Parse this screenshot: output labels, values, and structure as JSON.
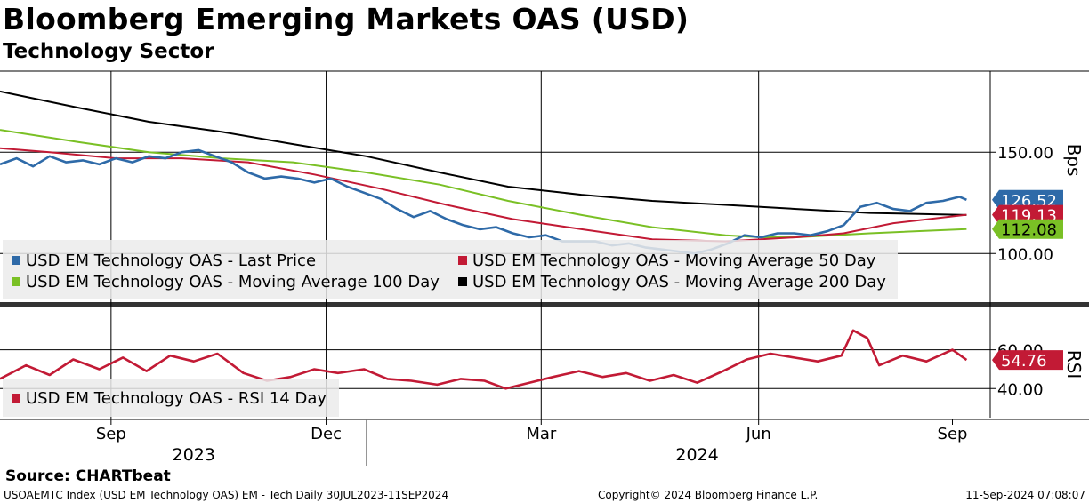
{
  "header": {
    "title": "Bloomberg Emerging Markets OAS (USD)",
    "subtitle": "Technology Sector"
  },
  "chart_data": [
    {
      "type": "line",
      "x_range": [
        "2023-07-30",
        "2024-09-11"
      ],
      "ylabel": "Bps",
      "ylim": [
        76,
        190
      ],
      "yticks": [
        100,
        150
      ],
      "ytick_labels": [
        "100.00",
        "150.00"
      ],
      "grid": true,
      "legend_placement": "bottom-left",
      "series": [
        {
          "name": "USD EM Technology OAS - Last Price",
          "color": "#2e6aa8",
          "last_label": "126.52",
          "points": [
            [
              "2023-07-30",
              144
            ],
            [
              "2023-08-06",
              147
            ],
            [
              "2023-08-13",
              143
            ],
            [
              "2023-08-20",
              148
            ],
            [
              "2023-08-27",
              145
            ],
            [
              "2023-09-03",
              146
            ],
            [
              "2023-09-10",
              144
            ],
            [
              "2023-09-17",
              147
            ],
            [
              "2023-09-24",
              145
            ],
            [
              "2023-10-01",
              148
            ],
            [
              "2023-10-08",
              147
            ],
            [
              "2023-10-15",
              150
            ],
            [
              "2023-10-22",
              151
            ],
            [
              "2023-10-29",
              148
            ],
            [
              "2023-11-05",
              145
            ],
            [
              "2023-11-12",
              140
            ],
            [
              "2023-11-19",
              137
            ],
            [
              "2023-11-26",
              138
            ],
            [
              "2023-12-03",
              137
            ],
            [
              "2023-12-10",
              135
            ],
            [
              "2023-12-17",
              137
            ],
            [
              "2023-12-24",
              133
            ],
            [
              "2023-12-31",
              130
            ],
            [
              "2024-01-07",
              127
            ],
            [
              "2024-01-14",
              122
            ],
            [
              "2024-01-21",
              118
            ],
            [
              "2024-01-28",
              121
            ],
            [
              "2024-02-04",
              117
            ],
            [
              "2024-02-11",
              114
            ],
            [
              "2024-02-18",
              112
            ],
            [
              "2024-02-25",
              113
            ],
            [
              "2024-03-03",
              110
            ],
            [
              "2024-03-10",
              108
            ],
            [
              "2024-03-17",
              109
            ],
            [
              "2024-03-24",
              106
            ],
            [
              "2024-03-31",
              106
            ],
            [
              "2024-04-07",
              106
            ],
            [
              "2024-04-14",
              104
            ],
            [
              "2024-04-21",
              105
            ],
            [
              "2024-04-28",
              103
            ],
            [
              "2024-05-05",
              102
            ],
            [
              "2024-05-12",
              101
            ],
            [
              "2024-05-19",
              100
            ],
            [
              "2024-05-26",
              102
            ],
            [
              "2024-06-02",
              105
            ],
            [
              "2024-06-09",
              109
            ],
            [
              "2024-06-16",
              108
            ],
            [
              "2024-06-23",
              110
            ],
            [
              "2024-06-30",
              110
            ],
            [
              "2024-07-07",
              109
            ],
            [
              "2024-07-14",
              111
            ],
            [
              "2024-07-21",
              114
            ],
            [
              "2024-07-28",
              123
            ],
            [
              "2024-08-04",
              125
            ],
            [
              "2024-08-11",
              122
            ],
            [
              "2024-08-18",
              121
            ],
            [
              "2024-08-25",
              125
            ],
            [
              "2024-09-01",
              126
            ],
            [
              "2024-09-08",
              128
            ],
            [
              "2024-09-11",
              126.52
            ]
          ]
        },
        {
          "name": "USD EM Technology OAS - Moving Average 50 Day",
          "color": "#c21a35",
          "last_label": "119.13",
          "points": [
            [
              "2023-07-30",
              152
            ],
            [
              "2023-08-20",
              150
            ],
            [
              "2023-09-17",
              147
            ],
            [
              "2023-10-15",
              147
            ],
            [
              "2023-11-12",
              145
            ],
            [
              "2023-12-10",
              139
            ],
            [
              "2024-01-07",
              132
            ],
            [
              "2024-02-04",
              124
            ],
            [
              "2024-03-03",
              117
            ],
            [
              "2024-04-01",
              112
            ],
            [
              "2024-05-01",
              107
            ],
            [
              "2024-06-01",
              106
            ],
            [
              "2024-06-16",
              107
            ],
            [
              "2024-07-01",
              108
            ],
            [
              "2024-07-21",
              110
            ],
            [
              "2024-08-11",
              115
            ],
            [
              "2024-09-11",
              119.13
            ]
          ]
        },
        {
          "name": "USD EM Technology OAS - Moving Average 100 Day",
          "color": "#7ac025",
          "last_label": "112.08",
          "points": [
            [
              "2023-07-30",
              161
            ],
            [
              "2023-09-01",
              155
            ],
            [
              "2023-10-01",
              150
            ],
            [
              "2023-11-01",
              147
            ],
            [
              "2023-12-01",
              145
            ],
            [
              "2024-01-01",
              140
            ],
            [
              "2024-02-01",
              134
            ],
            [
              "2024-03-01",
              126
            ],
            [
              "2024-04-01",
              119
            ],
            [
              "2024-05-01",
              113
            ],
            [
              "2024-06-01",
              109
            ],
            [
              "2024-06-16",
              108
            ],
            [
              "2024-07-01",
              108
            ],
            [
              "2024-08-01",
              110
            ],
            [
              "2024-09-11",
              112.08
            ]
          ]
        },
        {
          "name": "USD EM Technology OAS - Moving Average 200 Day",
          "color": "#000000",
          "last_label": "",
          "points": [
            [
              "2023-07-30",
              180
            ],
            [
              "2023-09-01",
              172
            ],
            [
              "2023-10-01",
              165
            ],
            [
              "2023-11-01",
              160
            ],
            [
              "2023-12-01",
              154
            ],
            [
              "2024-01-01",
              148
            ],
            [
              "2024-02-01",
              140
            ],
            [
              "2024-03-01",
              133
            ],
            [
              "2024-04-01",
              129
            ],
            [
              "2024-05-01",
              126
            ],
            [
              "2024-06-01",
              124
            ],
            [
              "2024-07-01",
              122
            ],
            [
              "2024-08-01",
              120
            ],
            [
              "2024-09-11",
              119
            ]
          ]
        }
      ],
      "legend_rows": [
        [
          "USD EM Technology OAS - Last Price",
          "USD EM Technology OAS - Moving Average 50 Day"
        ],
        [
          "USD EM Technology OAS - Moving Average 100 Day",
          "USD EM Technology OAS - Moving Average 200 Day"
        ]
      ]
    },
    {
      "type": "line",
      "x_range": [
        "2023-07-30",
        "2024-09-11"
      ],
      "ylabel": "RSI",
      "ylim": [
        25,
        80
      ],
      "yticks": [
        40,
        60
      ],
      "ytick_labels": [
        "40.00",
        "60.00"
      ],
      "grid": true,
      "legend_placement": "bottom-left",
      "series": [
        {
          "name": "USD EM Technology OAS - RSI 14 Day",
          "color": "#c21a35",
          "last_label": "54.76",
          "points": [
            [
              "2023-07-30",
              45
            ],
            [
              "2023-08-10",
              52
            ],
            [
              "2023-08-20",
              47
            ],
            [
              "2023-08-30",
              55
            ],
            [
              "2023-09-10",
              50
            ],
            [
              "2023-09-20",
              56
            ],
            [
              "2023-09-30",
              49
            ],
            [
              "2023-10-10",
              57
            ],
            [
              "2023-10-20",
              54
            ],
            [
              "2023-10-30",
              58
            ],
            [
              "2023-11-10",
              48
            ],
            [
              "2023-11-20",
              44
            ],
            [
              "2023-11-30",
              46
            ],
            [
              "2023-12-10",
              50
            ],
            [
              "2023-12-20",
              48
            ],
            [
              "2023-12-31",
              50
            ],
            [
              "2024-01-10",
              45
            ],
            [
              "2024-01-20",
              44
            ],
            [
              "2024-01-31",
              42
            ],
            [
              "2024-02-10",
              45
            ],
            [
              "2024-02-20",
              44
            ],
            [
              "2024-02-29",
              40
            ],
            [
              "2024-03-10",
              43
            ],
            [
              "2024-03-20",
              46
            ],
            [
              "2024-03-31",
              49
            ],
            [
              "2024-04-10",
              46
            ],
            [
              "2024-04-20",
              48
            ],
            [
              "2024-04-30",
              44
            ],
            [
              "2024-05-10",
              47
            ],
            [
              "2024-05-20",
              43
            ],
            [
              "2024-05-31",
              49
            ],
            [
              "2024-06-10",
              55
            ],
            [
              "2024-06-20",
              58
            ],
            [
              "2024-06-30",
              56
            ],
            [
              "2024-07-10",
              54
            ],
            [
              "2024-07-20",
              57
            ],
            [
              "2024-07-25",
              70
            ],
            [
              "2024-07-31",
              66
            ],
            [
              "2024-08-05",
              52
            ],
            [
              "2024-08-15",
              57
            ],
            [
              "2024-08-25",
              54
            ],
            [
              "2024-09-05",
              60
            ],
            [
              "2024-09-11",
              54.76
            ]
          ]
        }
      ]
    }
  ],
  "x_axis": {
    "month_ticks": [
      [
        "2023-09-15",
        "Sep"
      ],
      [
        "2023-12-15",
        "Dec"
      ],
      [
        "2024-03-15",
        "Mar"
      ],
      [
        "2024-06-15",
        "Jun"
      ],
      [
        "2024-09-05",
        "Sep"
      ]
    ],
    "year_labels": [
      [
        "2023-10-20",
        "2023"
      ],
      [
        "2024-05-20",
        "2024"
      ]
    ]
  },
  "footer": {
    "source": "Source:  CHARTbeat",
    "index_info": "USOAEMTC Index (USD EM Technology OAS) EM - Tech  Daily 30JUL2023-11SEP2024",
    "copyright": "Copyright© 2024 Bloomberg Finance L.P.",
    "timestamp": "11-Sep-2024 07:08:07"
  }
}
